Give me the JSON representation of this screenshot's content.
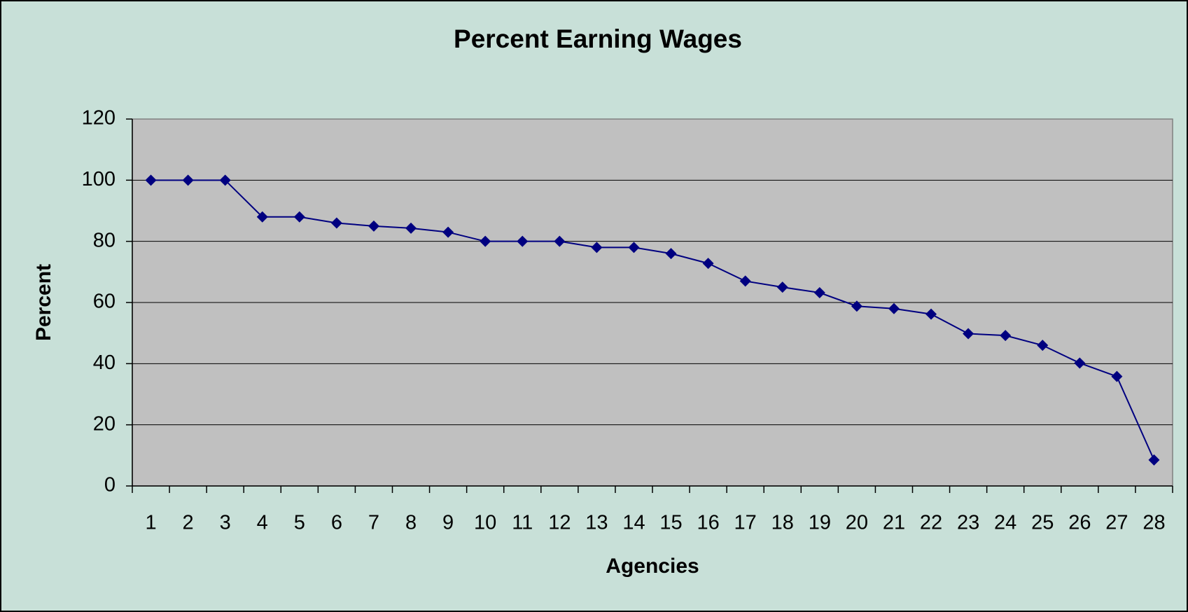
{
  "chart_data": {
    "type": "line",
    "title": "Percent Earning Wages",
    "x_label": "Agencies",
    "y_label": "Percent",
    "categories": [
      "1",
      "2",
      "3",
      "4",
      "5",
      "6",
      "7",
      "8",
      "9",
      "10",
      "11",
      "12",
      "13",
      "14",
      "15",
      "16",
      "17",
      "18",
      "19",
      "20",
      "21",
      "22",
      "23",
      "24",
      "25",
      "26",
      "27",
      "28"
    ],
    "series": [
      {
        "name": "Percent",
        "color": "#000080",
        "values": [
          100,
          100,
          100,
          88,
          88,
          86,
          85,
          84.3,
          83,
          80,
          80,
          80,
          78,
          78,
          76,
          72.8,
          67,
          65,
          63.2,
          58.8,
          58,
          56.2,
          49.8,
          49.2,
          46,
          40.2,
          35.8,
          8.5
        ]
      }
    ],
    "ylim": [
      0,
      120
    ],
    "yticks": [
      0,
      20,
      40,
      60,
      80,
      100,
      120
    ],
    "grid": true,
    "legend": false
  }
}
